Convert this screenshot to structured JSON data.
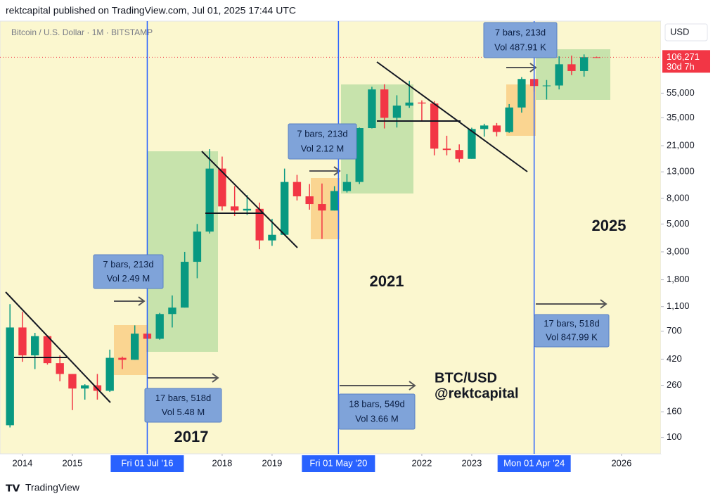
{
  "header": "rektcapital published on TradingView.com, Jul 01, 2025 17:44 UTC",
  "footer": "TradingView",
  "chart_data": {
    "type": "candlestick",
    "title": "Bitcoin / U.S. Dollar · 1M · BITSTAMP",
    "currency": "USD",
    "log_scale": true,
    "up_color": "#089981",
    "down_color": "#f23645",
    "x": [
      2013.75,
      2014.0,
      2014.25,
      2014.5,
      2014.75,
      2015.0,
      2015.25,
      2015.5,
      2015.75,
      2016.0,
      2016.25,
      2016.5,
      2016.75,
      2017.0,
      2017.25,
      2017.5,
      2017.75,
      2018.0,
      2018.25,
      2018.5,
      2018.75,
      2019.0,
      2019.25,
      2019.5,
      2019.75,
      2020.0,
      2020.25,
      2020.5,
      2020.75,
      2021.0,
      2021.25,
      2021.5,
      2021.75,
      2022.0,
      2022.25,
      2022.5,
      2022.75,
      2023.0,
      2023.25,
      2023.5,
      2023.75,
      2024.0,
      2024.25,
      2024.5,
      2024.75,
      2025.0,
      2025.25,
      2025.5
    ],
    "open": [
      125,
      750,
      450,
      640,
      390,
      320,
      245,
      260,
      235,
      430,
      415,
      670,
      610,
      960,
      1080,
      2500,
      4350,
      13800,
      6900,
      6400,
      6600,
      3700,
      4100,
      10800,
      8300,
      7200,
      6400,
      9150,
      10800,
      29000,
      58900,
      35000,
      43800,
      46300,
      45500,
      19900,
      19400,
      16500,
      28500,
      30400,
      27000,
      42300,
      71300,
      62700,
      63300,
      93400,
      82500,
      106300
    ],
    "high": [
      1150,
      1000,
      680,
      650,
      450,
      320,
      265,
      320,
      500,
      440,
      780,
      690,
      980,
      1350,
      3000,
      5000,
      19700,
      17200,
      10000,
      8500,
      7400,
      5500,
      13800,
      12300,
      10400,
      10500,
      10000,
      12500,
      29300,
      61800,
      64800,
      52900,
      69000,
      48200,
      47500,
      25200,
      21500,
      29200,
      31400,
      31800,
      45000,
      73800,
      72700,
      70000,
      108000,
      109500,
      111900,
      107500
    ],
    "low": [
      120,
      400,
      350,
      380,
      280,
      165,
      200,
      200,
      230,
      350,
      415,
      480,
      600,
      750,
      1080,
      1850,
      4200,
      6400,
      5800,
      5900,
      3150,
      3350,
      4100,
      7700,
      6500,
      3800,
      6400,
      8900,
      10400,
      28800,
      28800,
      29300,
      42000,
      32900,
      17600,
      17600,
      15500,
      16500,
      24800,
      24900,
      26600,
      38500,
      56500,
      49000,
      58900,
      76600,
      74500,
      105200
    ],
    "close": [
      750,
      450,
      640,
      390,
      320,
      245,
      260,
      235,
      430,
      415,
      670,
      610,
      960,
      1080,
      2500,
      4350,
      13800,
      6900,
      6400,
      6600,
      3700,
      4100,
      10800,
      8300,
      7200,
      6400,
      9150,
      10800,
      29000,
      58900,
      35000,
      43800,
      46300,
      45500,
      19900,
      19400,
      16500,
      28500,
      30400,
      27000,
      42300,
      71300,
      62700,
      63300,
      93400,
      82500,
      106300,
      106271
    ],
    "xlim": [
      2013.55,
      2026.79
    ],
    "ylim": [
      74,
      206000
    ],
    "xticks": [
      2014,
      2015,
      {
        "value": 2016.5,
        "label": "Fri 01 Jul '16"
      },
      2018,
      2019,
      {
        "value": 2020.33,
        "label": "Fri 01 May '20"
      },
      2022,
      2023,
      {
        "value": 2024.25,
        "label": "Mon 01 Apr '24"
      },
      2026
    ],
    "yticks": [
      100,
      160,
      260,
      420,
      700,
      {
        "value": 1100,
        "label": "1,100"
      },
      {
        "value": 1800,
        "label": "1,800"
      },
      {
        "value": 3000,
        "label": "3,000"
      },
      {
        "value": 5000,
        "label": "5,000"
      },
      {
        "value": 8000,
        "label": "8,000"
      },
      {
        "value": 13000,
        "label": "13,000"
      },
      {
        "value": 21000,
        "label": "21,000"
      },
      {
        "value": 35000,
        "label": "35,000"
      },
      {
        "value": 55000,
        "label": "55,000"
      }
    ],
    "last_price": {
      "value": 106271,
      "label": "106,271"
    },
    "countdown": "30d 7h",
    "annotations": [
      [
        "7 bars, 213d",
        "Vol 2.49 M"
      ],
      [
        "17 bars, 518d",
        "Vol 5.48 M"
      ],
      [
        "7 bars, 213d",
        "Vol 2.12 M"
      ],
      [
        "18 bars, 549d",
        "Vol 3.66 M"
      ],
      [
        "7 bars, 213d",
        "Vol 487.91 K"
      ],
      [
        "17 bars, 518d",
        "Vol 847.99 K"
      ]
    ],
    "cycle_labels": [
      "2017",
      "2021",
      "2025"
    ],
    "watermark": [
      "BTC/USD",
      "@rektcapital"
    ]
  }
}
